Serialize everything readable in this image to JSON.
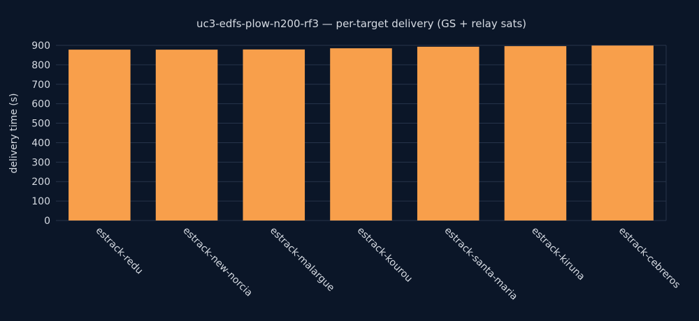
{
  "chart_data": {
    "type": "bar",
    "title": "uc3-edfs-plow-n200-rf3 — per-target delivery (GS + relay sats)",
    "xlabel": "",
    "ylabel": "delivery time (s)",
    "categories": [
      "estrack-redu",
      "estrack-new-norcia",
      "estrack-malargue",
      "estrack-kourou",
      "estrack-santa-maria",
      "estrack-kiruna",
      "estrack-cebreros"
    ],
    "values": [
      878,
      878,
      879,
      885,
      893,
      896,
      899
    ],
    "ylim": [
      0,
      900
    ],
    "yticks": [
      0,
      100,
      200,
      300,
      400,
      500,
      600,
      700,
      800,
      900
    ],
    "grid": true,
    "legend": "none",
    "colors": {
      "bar": "#f89f4b",
      "background": "#0b1628",
      "grid": "#27344a",
      "text": "#d6dbe3"
    }
  }
}
